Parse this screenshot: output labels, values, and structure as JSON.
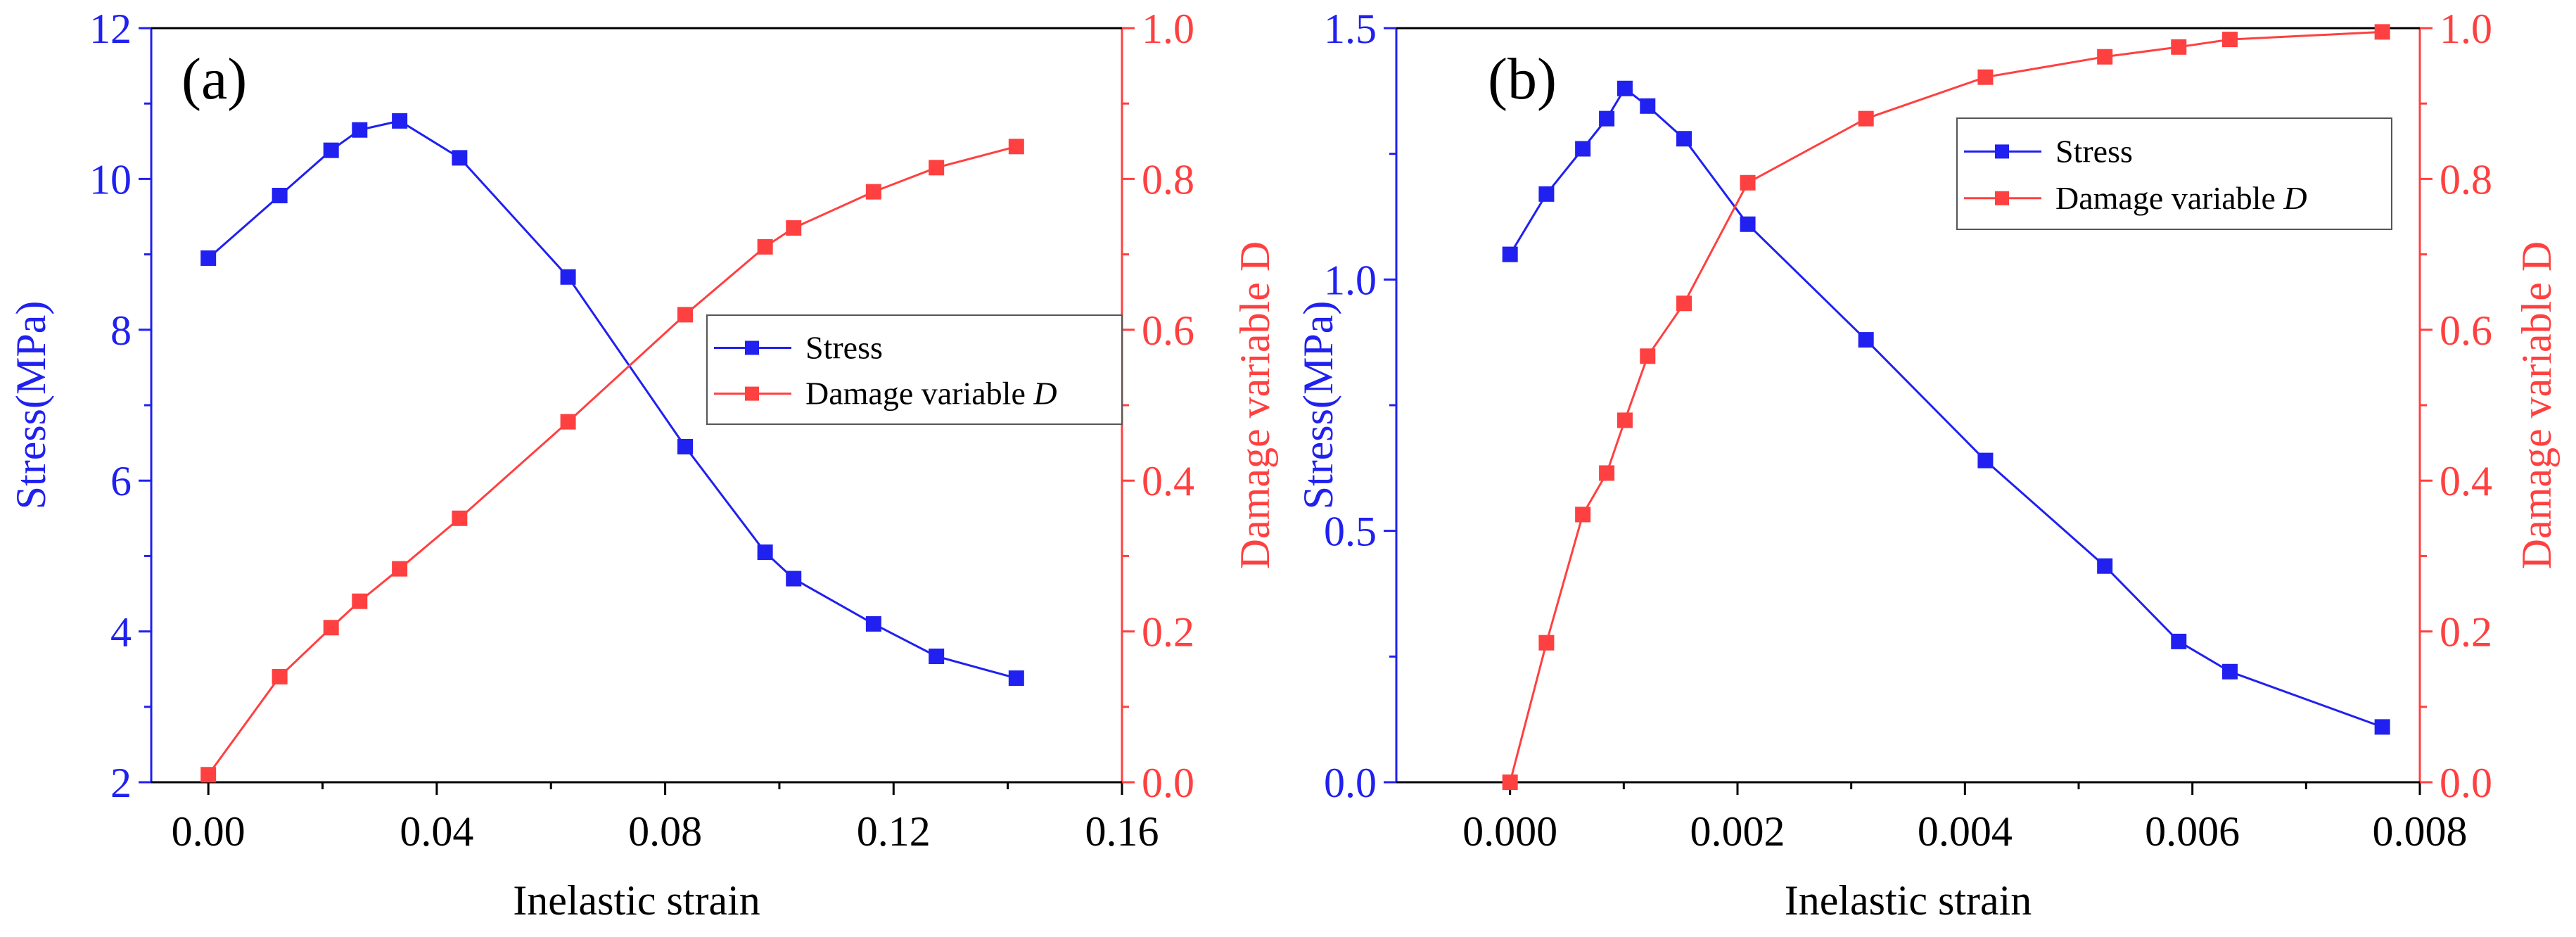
{
  "colors": {
    "stress": "#2020f0",
    "damage": "#ff4040",
    "axis": "#000000"
  },
  "chart_data": [
    {
      "type": "line",
      "panel_label": "(a)",
      "xlabel": "Inelastic strain",
      "ylabel": "Stress(MPa)",
      "y2label": "Damage variable D",
      "xlim": [
        -0.01,
        0.16
      ],
      "ylim": [
        2,
        12
      ],
      "y2lim": [
        0.0,
        1.0
      ],
      "xticks": [
        0.0,
        0.04,
        0.08,
        0.12,
        0.16
      ],
      "xtick_labels": [
        "0.00",
        "0.04",
        "0.08",
        "0.12",
        "0.16"
      ],
      "yticks": [
        2,
        4,
        6,
        8,
        10,
        12
      ],
      "ytick_labels": [
        "2",
        "4",
        "6",
        "8",
        "10",
        "12"
      ],
      "y2ticks": [
        0.0,
        0.2,
        0.4,
        0.6,
        0.8,
        1.0
      ],
      "y2tick_labels": [
        "0.0",
        "0.2",
        "0.4",
        "0.6",
        "0.8",
        "1.0"
      ],
      "legend": {
        "location": "center-right",
        "entries": [
          "Stress",
          "Damage variable "
        ],
        "italic_suffix": "D"
      },
      "series": [
        {
          "name": "Stress",
          "axis": "left",
          "x": [
            0.0,
            0.0125,
            0.0215,
            0.0265,
            0.0335,
            0.044,
            0.063,
            0.0835,
            0.0975,
            0.1025,
            0.1165,
            0.1275,
            0.1415
          ],
          "y": [
            8.95,
            9.78,
            10.38,
            10.65,
            10.77,
            10.28,
            8.7,
            6.45,
            5.05,
            4.7,
            4.1,
            3.67,
            3.38
          ]
        },
        {
          "name": "Damage variable D",
          "axis": "right",
          "x": [
            0.0,
            0.0125,
            0.0215,
            0.0265,
            0.0335,
            0.044,
            0.063,
            0.0835,
            0.0975,
            0.1025,
            0.1165,
            0.1275,
            0.1415
          ],
          "y": [
            0.01,
            0.14,
            0.205,
            0.24,
            0.283,
            0.35,
            0.478,
            0.62,
            0.71,
            0.735,
            0.783,
            0.815,
            0.843
          ]
        }
      ]
    },
    {
      "type": "line",
      "panel_label": "(b)",
      "xlabel": "Inelastic strain",
      "ylabel": "Stress(MPa)",
      "y2label": "Damage variable D",
      "xlim": [
        -0.001,
        0.008
      ],
      "ylim": [
        0.0,
        1.5
      ],
      "y2lim": [
        0.0,
        1.0
      ],
      "xticks": [
        0.0,
        0.002,
        0.004,
        0.006,
        0.008
      ],
      "xtick_labels": [
        "0.000",
        "0.002",
        "0.004",
        "0.006",
        "0.008"
      ],
      "yticks": [
        0.0,
        0.5,
        1.0,
        1.5
      ],
      "ytick_labels": [
        "0.0",
        "0.5",
        "1.0",
        "1.5"
      ],
      "y2ticks": [
        0.0,
        0.2,
        0.4,
        0.6,
        0.8,
        1.0
      ],
      "y2tick_labels": [
        "0.0",
        "0.2",
        "0.4",
        "0.6",
        "0.8",
        "1.0"
      ],
      "legend": {
        "location": "top-right",
        "entries": [
          "Stress",
          "Damage variable "
        ],
        "italic_suffix": "D"
      },
      "series": [
        {
          "name": "Stress",
          "axis": "left",
          "x": [
            0.0,
            0.00032,
            0.00064,
            0.00085,
            0.00101,
            0.00121,
            0.00153,
            0.00209,
            0.00313,
            0.00418,
            0.00523,
            0.00588,
            0.00633,
            0.00767
          ],
          "y": [
            1.05,
            1.17,
            1.26,
            1.32,
            1.38,
            1.345,
            1.28,
            1.11,
            0.88,
            0.64,
            0.43,
            0.28,
            0.22,
            0.11
          ]
        },
        {
          "name": "Damage variable D",
          "axis": "right",
          "x": [
            0.0,
            0.00032,
            0.00064,
            0.00085,
            0.00101,
            0.00121,
            0.00153,
            0.00209,
            0.00313,
            0.00418,
            0.00523,
            0.00588,
            0.00633,
            0.00767
          ],
          "y": [
            0.0,
            0.185,
            0.355,
            0.41,
            0.48,
            0.565,
            0.635,
            0.795,
            0.88,
            0.935,
            0.962,
            0.975,
            0.985,
            0.995
          ]
        }
      ]
    }
  ]
}
